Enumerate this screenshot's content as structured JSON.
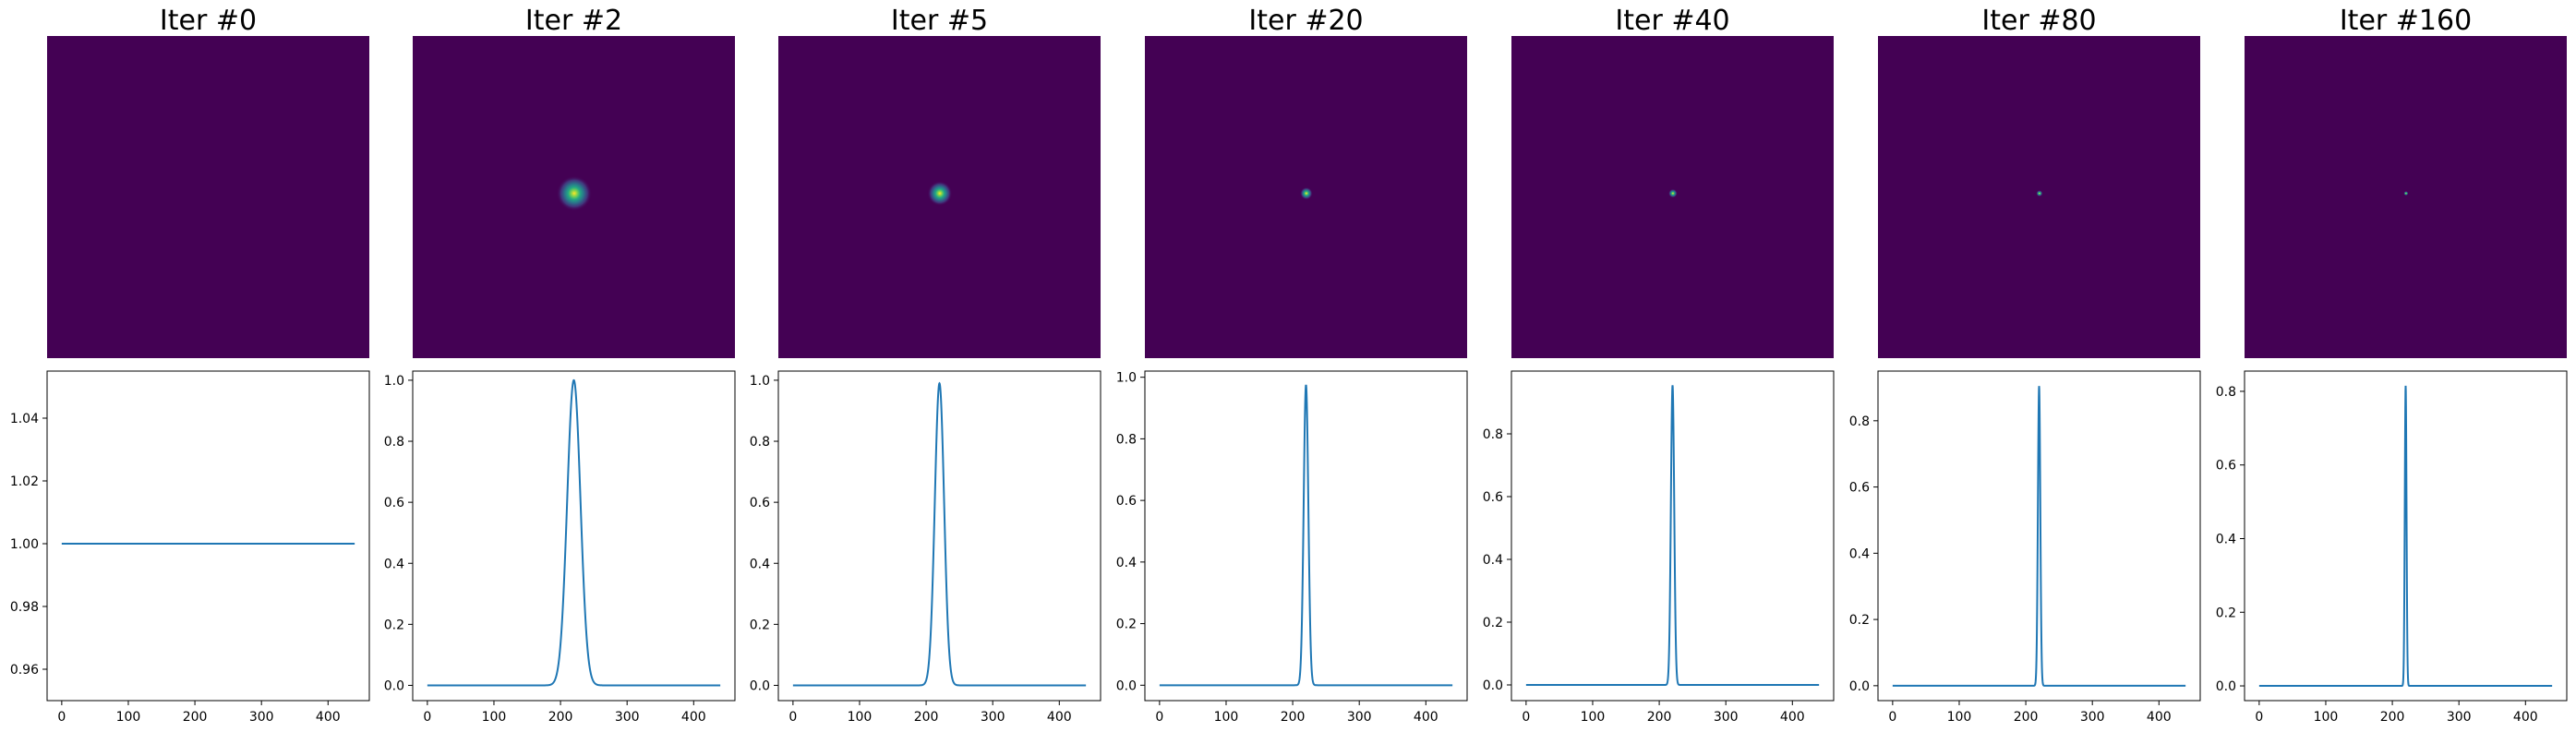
{
  "chart_data": [
    {
      "title": "Iter #0",
      "heatmap": {
        "type": "heatmap",
        "colormap": "viridis",
        "spot_width": 0
      },
      "line": {
        "type": "line",
        "color": "#1f77b4",
        "peak_x": 220,
        "peak_y": 1.0,
        "baseline": 1.0,
        "width": 0,
        "xlim": [
          -22,
          462
        ],
        "ylim": [
          0.95,
          1.055
        ],
        "xticks": [
          0,
          100,
          200,
          300,
          400
        ],
        "xtick_labels": [
          "0",
          "100",
          "200",
          "300",
          "400"
        ],
        "yticks": [
          0.96,
          0.98,
          1.0,
          1.02,
          1.04
        ],
        "ytick_labels": [
          "0.96",
          "0.98",
          "1.00",
          "1.02",
          "1.04"
        ]
      }
    },
    {
      "title": "Iter #2",
      "heatmap": {
        "type": "heatmap",
        "colormap": "viridis",
        "spot_width": 10
      },
      "line": {
        "type": "line",
        "color": "#1f77b4",
        "peak_x": 220,
        "peak_y": 1.0,
        "baseline": 0.0,
        "width": 10,
        "xlim": [
          -22,
          462
        ],
        "ylim": [
          -0.05,
          1.03
        ],
        "xticks": [
          0,
          100,
          200,
          300,
          400
        ],
        "xtick_labels": [
          "0",
          "100",
          "200",
          "300",
          "400"
        ],
        "yticks": [
          0.0,
          0.2,
          0.4,
          0.6,
          0.8,
          1.0
        ],
        "ytick_labels": [
          "0.0",
          "0.2",
          "0.4",
          "0.6",
          "0.8",
          "1.0"
        ]
      }
    },
    {
      "title": "Iter #5",
      "heatmap": {
        "type": "heatmap",
        "colormap": "viridis",
        "spot_width": 7
      },
      "line": {
        "type": "line",
        "color": "#1f77b4",
        "peak_x": 220,
        "peak_y": 0.99,
        "baseline": 0.0,
        "width": 7,
        "xlim": [
          -22,
          462
        ],
        "ylim": [
          -0.05,
          1.03
        ],
        "xticks": [
          0,
          100,
          200,
          300,
          400
        ],
        "xtick_labels": [
          "0",
          "100",
          "200",
          "300",
          "400"
        ],
        "yticks": [
          0.0,
          0.2,
          0.4,
          0.6,
          0.8,
          1.0
        ],
        "ytick_labels": [
          "0.0",
          "0.2",
          "0.4",
          "0.6",
          "0.8",
          "1.0"
        ]
      }
    },
    {
      "title": "Iter #20",
      "heatmap": {
        "type": "heatmap",
        "colormap": "viridis",
        "spot_width": 3.5
      },
      "line": {
        "type": "line",
        "color": "#1f77b4",
        "peak_x": 220,
        "peak_y": 0.975,
        "baseline": 0.0,
        "width": 3.5,
        "xlim": [
          -22,
          462
        ],
        "ylim": [
          -0.05,
          1.02
        ],
        "xticks": [
          0,
          100,
          200,
          300,
          400
        ],
        "xtick_labels": [
          "0",
          "100",
          "200",
          "300",
          "400"
        ],
        "yticks": [
          0.0,
          0.2,
          0.4,
          0.6,
          0.8,
          1.0
        ],
        "ytick_labels": [
          "0.0",
          "0.2",
          "0.4",
          "0.6",
          "0.8",
          "1.0"
        ]
      }
    },
    {
      "title": "Iter #40",
      "heatmap": {
        "type": "heatmap",
        "colormap": "viridis",
        "spot_width": 2.5
      },
      "line": {
        "type": "line",
        "color": "#1f77b4",
        "peak_x": 220,
        "peak_y": 0.955,
        "baseline": 0.0,
        "width": 2.5,
        "xlim": [
          -22,
          462
        ],
        "ylim": [
          -0.05,
          1.0
        ],
        "xticks": [
          0,
          100,
          200,
          300,
          400
        ],
        "xtick_labels": [
          "0",
          "100",
          "200",
          "300",
          "400"
        ],
        "yticks": [
          0.0,
          0.2,
          0.4,
          0.6,
          0.8
        ],
        "ytick_labels": [
          "0.0",
          "0.2",
          "0.4",
          "0.6",
          "0.8"
        ]
      }
    },
    {
      "title": "Iter #80",
      "heatmap": {
        "type": "heatmap",
        "colormap": "viridis",
        "spot_width": 1.8
      },
      "line": {
        "type": "line",
        "color": "#1f77b4",
        "peak_x": 220,
        "peak_y": 0.905,
        "baseline": 0.0,
        "width": 1.8,
        "xlim": [
          -22,
          462
        ],
        "ylim": [
          -0.045,
          0.95
        ],
        "xticks": [
          0,
          100,
          200,
          300,
          400
        ],
        "xtick_labels": [
          "0",
          "100",
          "200",
          "300",
          "400"
        ],
        "yticks": [
          0.0,
          0.2,
          0.4,
          0.6,
          0.8
        ],
        "ytick_labels": [
          "0.0",
          "0.2",
          "0.4",
          "0.6",
          "0.8"
        ]
      }
    },
    {
      "title": "Iter #160",
      "heatmap": {
        "type": "heatmap",
        "colormap": "viridis",
        "spot_width": 1.3
      },
      "line": {
        "type": "line",
        "color": "#1f77b4",
        "peak_x": 220,
        "peak_y": 0.815,
        "baseline": 0.0,
        "width": 1.3,
        "xlim": [
          -22,
          462
        ],
        "ylim": [
          -0.04,
          0.855
        ],
        "xticks": [
          0,
          100,
          200,
          300,
          400
        ],
        "xtick_labels": [
          "0",
          "100",
          "200",
          "300",
          "400"
        ],
        "yticks": [
          0.0,
          0.2,
          0.4,
          0.6,
          0.8
        ],
        "ytick_labels": [
          "0.0",
          "0.2",
          "0.4",
          "0.6",
          "0.8"
        ]
      }
    }
  ]
}
